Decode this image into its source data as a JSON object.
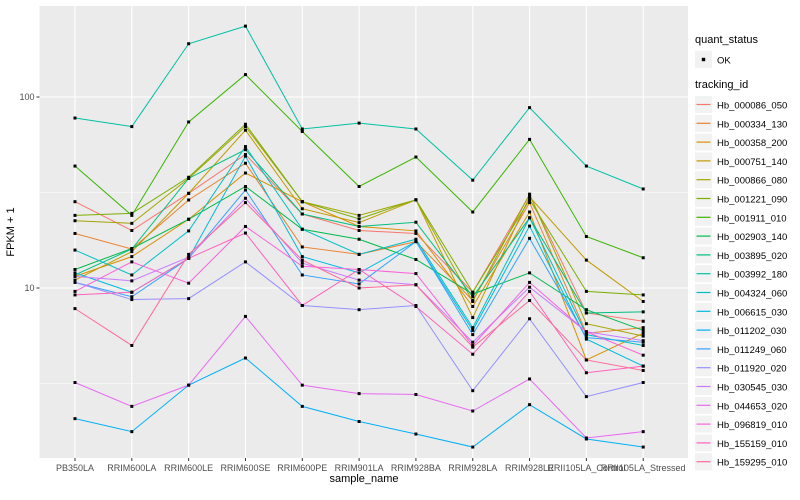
{
  "chart_data": {
    "type": "line",
    "title": "",
    "xlabel": "sample_name",
    "ylabel": "FPKM + 1",
    "y_scale": "log10",
    "y_ticks": [
      10,
      100
    ],
    "y_minor_ticks": [
      3.162,
      31.62
    ],
    "ylim": [
      1.29,
      300
    ],
    "grid": "on",
    "legend_position": "right",
    "panel_bg": "#EBEBEB",
    "grid_color": "#FFFFFF",
    "tick_label_color": "#4D4D4D",
    "axis_title_color": "#000000",
    "marker_color": "#000000",
    "legend_key_bg": "#F2F2F2",
    "x_categories": [
      "PB350LA",
      "RRIM600LA",
      "RRIM600LE",
      "RRIM600SE",
      "RRIM600PE",
      "RRIM901LA",
      "RRIM928BA",
      "RRIM928LA",
      "RRIM928LE",
      "RRII105LA_Control",
      "RRII105LA_Stressed"
    ],
    "legend": {
      "quant_status_title": "quant_status",
      "quant_status_items": [
        {
          "label": "OK",
          "marker": "black-point"
        }
      ],
      "tracking_title": "tracking_id"
    },
    "series": [
      {
        "name": "Hb_000086_050",
        "color": "#F8766D",
        "values": [
          28.3,
          20,
          31.3,
          50,
          24.4,
          20,
          19.3,
          9.5,
          30.7,
          7.4,
          6.7
        ]
      },
      {
        "name": "Hb_000334_130",
        "color": "#EA8331",
        "values": [
          19.3,
          16,
          28.9,
          45,
          16.4,
          15,
          17.5,
          8.6,
          28,
          5.8,
          6.2
        ]
      },
      {
        "name": "Hb_000358_200",
        "color": "#D89000",
        "values": [
          11.5,
          14.6,
          22.9,
          40,
          28.3,
          21,
          19.9,
          8.0,
          25,
          4.2,
          5.8
        ]
      },
      {
        "name": "Hb_000751_140",
        "color": "#C09B00",
        "values": [
          11.0,
          15.5,
          31.3,
          67,
          26,
          22,
          28.9,
          7.0,
          30,
          14,
          8.5
        ]
      },
      {
        "name": "Hb_000866_080",
        "color": "#A3A500",
        "values": [
          22.5,
          21.8,
          37.5,
          70,
          28.3,
          24,
          28.9,
          8.5,
          31,
          6.5,
          5.6
        ]
      },
      {
        "name": "Hb_001221_090",
        "color": "#7CAE00",
        "values": [
          24.0,
          24.6,
          38,
          72,
          28.3,
          23,
          29,
          9.5,
          29,
          9.6,
          9.2
        ]
      },
      {
        "name": "Hb_001911_010",
        "color": "#39B600",
        "values": [
          43.5,
          24,
          74,
          131,
          66,
          34,
          48.5,
          25,
          60,
          18.6,
          14.4
        ]
      },
      {
        "name": "Hb_002903_140",
        "color": "#00BB4E",
        "values": [
          12.5,
          16.1,
          22.9,
          34,
          20.3,
          18,
          14.1,
          9.3,
          12,
          7.7,
          6.0
        ]
      },
      {
        "name": "Hb_003895_020",
        "color": "#00BF7D",
        "values": [
          11.7,
          16,
          37.5,
          53,
          24.4,
          21,
          22.1,
          9.0,
          23.3,
          7.4,
          7.5
        ]
      },
      {
        "name": "Hb_003992_180",
        "color": "#00C1A3",
        "values": [
          77.6,
          70,
          190,
          235,
          68,
          73,
          68,
          36.7,
          88,
          43.5,
          33
        ]
      },
      {
        "name": "Hb_004324_060",
        "color": "#00BFC4",
        "values": [
          15.8,
          11.7,
          19.9,
          55,
          20.3,
          15,
          18,
          6.2,
          23.3,
          5.7,
          5.0
        ]
      },
      {
        "name": "Hb_006615_030",
        "color": "#00BAE0",
        "values": [
          12.0,
          9.5,
          14.3,
          49,
          14.6,
          12,
          17.5,
          6.0,
          21.1,
          5.4,
          3.9
        ]
      },
      {
        "name": "Hb_011202_030",
        "color": "#00B0F6",
        "values": [
          2.07,
          1.77,
          3.1,
          4.3,
          2.4,
          2.0,
          1.72,
          1.47,
          2.45,
          1.62,
          1.47
        ]
      },
      {
        "name": "Hb_011249_060",
        "color": "#35A2FF",
        "values": [
          10.7,
          9.0,
          14.3,
          32.6,
          11.7,
          10.5,
          17.5,
          5.7,
          18.2,
          5.5,
          5.2
        ]
      },
      {
        "name": "Hb_011920_020",
        "color": "#9590FF",
        "values": [
          10.7,
          8.7,
          8.8,
          13.7,
          8.1,
          7.7,
          8.1,
          2.9,
          6.9,
          2.7,
          3.2
        ]
      },
      {
        "name": "Hb_030545_030",
        "color": "#C77CFF",
        "values": [
          11.5,
          10.9,
          14.5,
          29.5,
          13.5,
          11,
          10.4,
          5.2,
          10.1,
          5.9,
          5.3
        ]
      },
      {
        "name": "Hb_044653_020",
        "color": "#E76BF3",
        "values": [
          3.2,
          2.4,
          3.1,
          7.1,
          3.1,
          2.8,
          2.77,
          2.27,
          3.34,
          1.64,
          1.77
        ]
      },
      {
        "name": "Hb_096819_010",
        "color": "#FA62DB",
        "values": [
          9.6,
          13.7,
          10.6,
          21,
          13,
          12.5,
          11.9,
          5.0,
          10.7,
          5.9,
          4.45
        ]
      },
      {
        "name": "Hb_155159_010",
        "color": "#FF62BC",
        "values": [
          9.2,
          9.5,
          14.3,
          19.4,
          8.1,
          12.5,
          8.0,
          4.5,
          9.6,
          3.6,
          3.9
        ]
      },
      {
        "name": "Hb_159295_010",
        "color": "#FF6A98",
        "values": [
          7.8,
          5.0,
          15,
          28,
          14,
          10,
          10.4,
          4.9,
          8.6,
          4.2,
          3.7
        ]
      }
    ]
  }
}
